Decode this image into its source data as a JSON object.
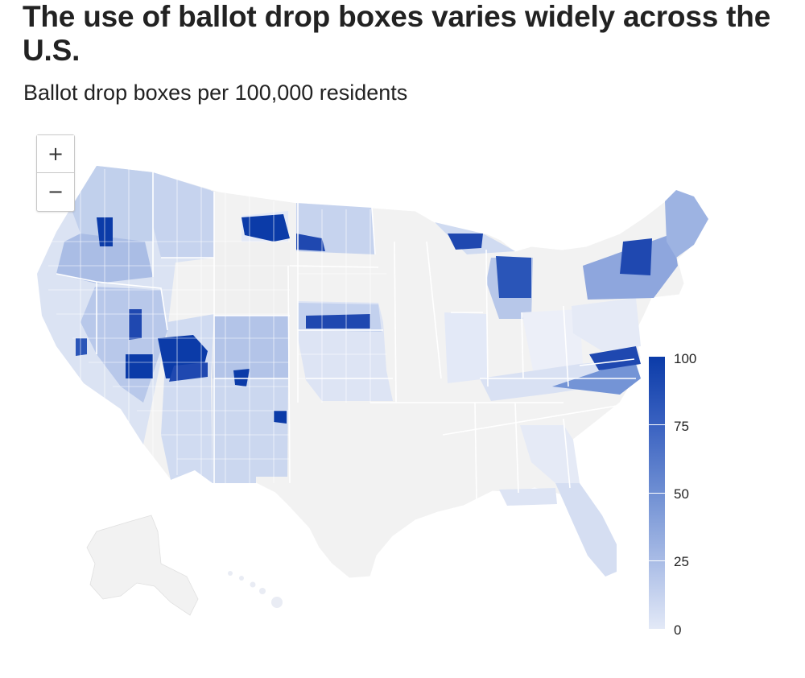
{
  "header": {
    "title": "The use of ballot drop boxes varies widely across the U.S.",
    "subtitle": "Ballot drop boxes per 100,000 residents"
  },
  "zoom": {
    "in_label": "+",
    "out_label": "−"
  },
  "legend": {
    "labels": [
      "100",
      "75",
      "50",
      "25",
      "0"
    ],
    "min": 0,
    "max": 100,
    "colors": {
      "low": "#e3e9f7",
      "q1": "#a9bce6",
      "mid": "#6f8fd3",
      "q3": "#3a62c1",
      "high": "#0b3ba8",
      "no_data": "#f2f2f2"
    }
  },
  "map": {
    "type": "choropleth",
    "geography": "U.S. counties",
    "measure": "Ballot drop boxes per 100,000 residents"
  }
}
